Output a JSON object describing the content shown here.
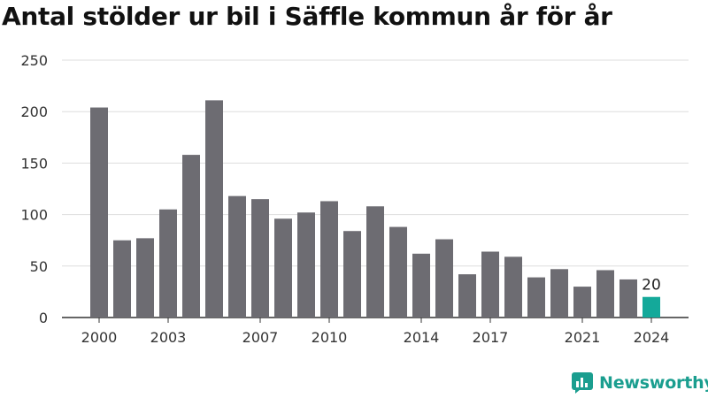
{
  "chart_data": {
    "type": "bar",
    "title": "Antal stölder ur bil i Säffle kommun år för år",
    "categories": [
      "2000",
      "2001",
      "2002",
      "2003",
      "2004",
      "2005",
      "2006",
      "2007",
      "2008",
      "2009",
      "2010",
      "2011",
      "2012",
      "2013",
      "2014",
      "2015",
      "2016",
      "2017",
      "2018",
      "2019",
      "2020",
      "2021",
      "2022",
      "2023",
      "2024"
    ],
    "values": [
      204,
      75,
      77,
      105,
      158,
      211,
      118,
      115,
      96,
      102,
      113,
      84,
      108,
      88,
      62,
      76,
      42,
      64,
      59,
      39,
      47,
      30,
      46,
      37,
      20
    ],
    "xticks": [
      "2000",
      "2003",
      "2007",
      "2010",
      "2014",
      "2017",
      "2021",
      "2024"
    ],
    "yticks": [
      0,
      50,
      100,
      150,
      200,
      250
    ],
    "ylim": [
      0,
      250
    ],
    "xlabel": "",
    "ylabel": "",
    "grid": true,
    "highlight_category": "2024",
    "highlight_label": "20",
    "colors": {
      "bar": "#6d6c72",
      "highlight": "#14a99a",
      "grid": "#dddddd",
      "axis": "#333333"
    }
  },
  "brand": {
    "name": "Newsworthy",
    "color": "#1a9e8f",
    "icon": "newsworthy-logo-icon"
  }
}
